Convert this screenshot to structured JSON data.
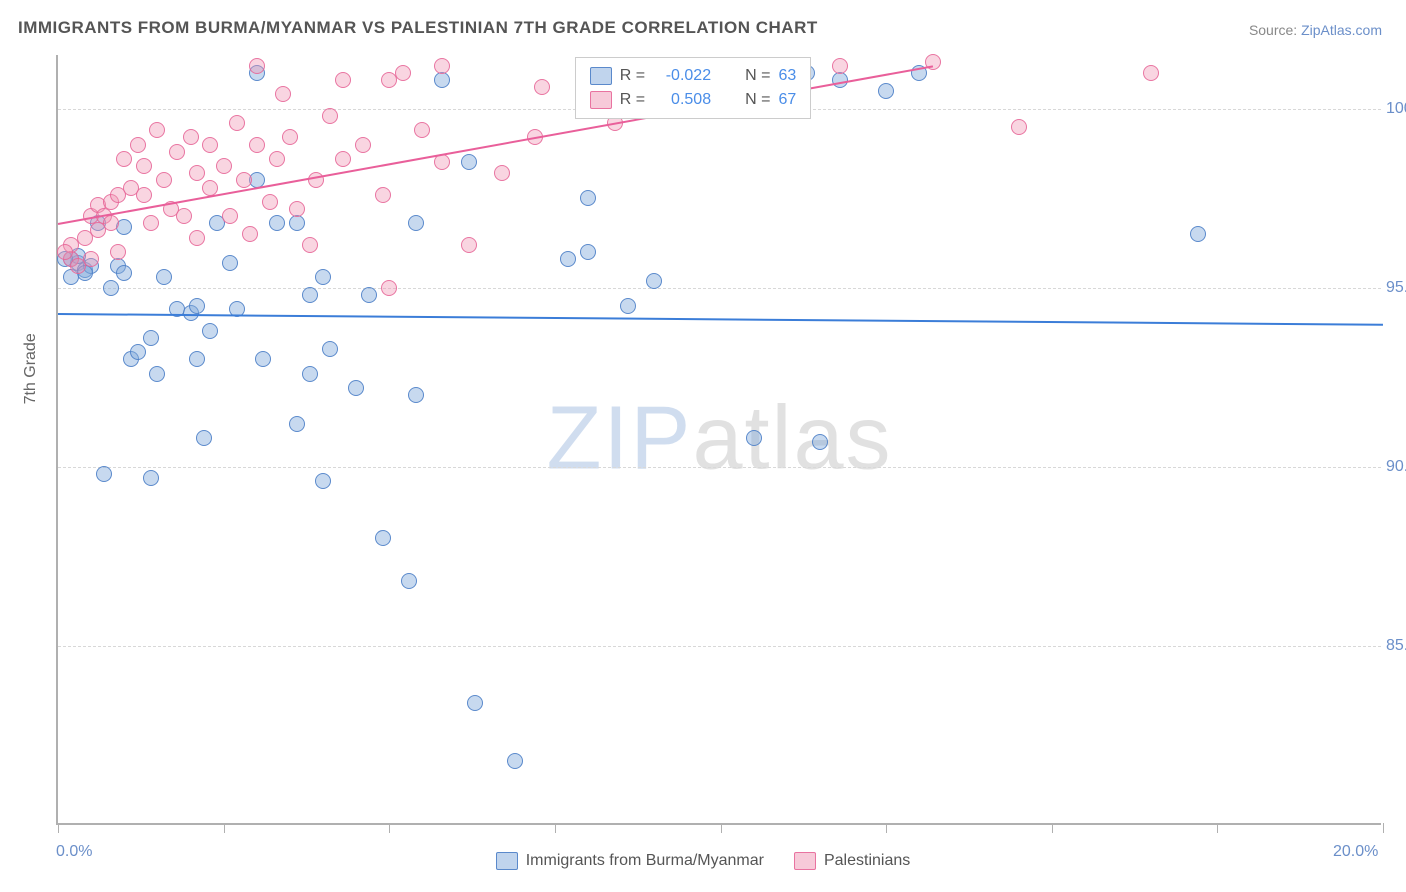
{
  "title": "IMMIGRANTS FROM BURMA/MYANMAR VS PALESTINIAN 7TH GRADE CORRELATION CHART",
  "source_label": "Source: ",
  "source_link": "ZipAtlas.com",
  "ylabel": "7th Grade",
  "watermark_left": "ZIP",
  "watermark_right": "atlas",
  "chart": {
    "type": "scatter",
    "background_color": "#ffffff",
    "grid_color": "#d8d8d8",
    "axis_color": "#b0b0b0",
    "xlim": [
      0,
      20
    ],
    "ylim": [
      80,
      101.5
    ],
    "xtick_positions": [
      0,
      2.5,
      5,
      7.5,
      10,
      12.5,
      15,
      17.5,
      20
    ],
    "ytick_positions": [
      85,
      90,
      95,
      100
    ],
    "xtick_labels_shown": {
      "0": "0.0%",
      "20": "20.0%"
    },
    "ytick_labels": {
      "85": "85.0%",
      "90": "90.0%",
      "95": "95.0%",
      "100": "100.0%"
    },
    "marker_radius": 8,
    "marker_fill_opacity": 0.45,
    "line_width": 2,
    "label_fontsize": 16,
    "title_fontsize": 17,
    "tick_label_color": "#6b8fc9",
    "series": [
      {
        "name": "Immigrants from Burma/Myanmar",
        "color_fill": "#82aadc",
        "color_border": "#5082c8",
        "trend_color": "#3b7dd8",
        "R": "-0.022",
        "N": "63",
        "trend": {
          "x1": 0,
          "y1": 94.3,
          "x2": 20,
          "y2": 94.0
        },
        "points": [
          [
            0.2,
            95.8
          ],
          [
            0.3,
            95.7
          ],
          [
            0.4,
            95.5
          ],
          [
            0.3,
            95.9
          ],
          [
            0.5,
            95.6
          ],
          [
            0.1,
            95.8
          ],
          [
            0.4,
            95.4
          ],
          [
            0.2,
            95.3
          ],
          [
            0.6,
            96.8
          ],
          [
            0.8,
            95.0
          ],
          [
            0.9,
            95.6
          ],
          [
            1.0,
            96.7
          ],
          [
            1.0,
            95.4
          ],
          [
            1.1,
            93.0
          ],
          [
            0.7,
            89.8
          ],
          [
            1.2,
            93.2
          ],
          [
            1.4,
            93.6
          ],
          [
            1.5,
            92.6
          ],
          [
            1.4,
            89.7
          ],
          [
            1.6,
            95.3
          ],
          [
            1.8,
            94.4
          ],
          [
            2.0,
            94.3
          ],
          [
            2.1,
            94.5
          ],
          [
            2.3,
            93.8
          ],
          [
            2.1,
            93.0
          ],
          [
            2.2,
            90.8
          ],
          [
            2.4,
            96.8
          ],
          [
            2.6,
            95.7
          ],
          [
            2.7,
            94.4
          ],
          [
            3.0,
            98.0
          ],
          [
            3.0,
            101.0
          ],
          [
            3.1,
            93.0
          ],
          [
            3.3,
            96.8
          ],
          [
            3.6,
            96.8
          ],
          [
            3.8,
            94.8
          ],
          [
            3.8,
            92.6
          ],
          [
            3.6,
            91.2
          ],
          [
            4.0,
            95.3
          ],
          [
            4.1,
            93.3
          ],
          [
            4.5,
            92.2
          ],
          [
            4.9,
            88.0
          ],
          [
            4.0,
            89.6
          ],
          [
            4.7,
            94.8
          ],
          [
            5.4,
            92.0
          ],
          [
            5.3,
            86.8
          ],
          [
            5.4,
            96.8
          ],
          [
            5.8,
            100.8
          ],
          [
            6.2,
            98.5
          ],
          [
            6.3,
            83.4
          ],
          [
            6.9,
            81.8
          ],
          [
            8.0,
            96.0
          ],
          [
            8.0,
            97.5
          ],
          [
            8.6,
            94.5
          ],
          [
            9.0,
            95.2
          ],
          [
            10.5,
            90.8
          ],
          [
            11.5,
            90.7
          ],
          [
            11.3,
            101.0
          ],
          [
            12.5,
            100.5
          ],
          [
            11.0,
            100.3
          ],
          [
            11.8,
            100.8
          ],
          [
            13.0,
            101.0
          ],
          [
            17.2,
            96.5
          ],
          [
            7.7,
            95.8
          ]
        ]
      },
      {
        "name": "Palestinians",
        "color_fill": "#f096b4",
        "color_border": "#e66496",
        "trend_color": "#e95f9a",
        "R": "0.508",
        "N": "67",
        "trend": {
          "x1": 0,
          "y1": 96.8,
          "x2": 13.2,
          "y2": 101.2
        },
        "points": [
          [
            0.2,
            95.8
          ],
          [
            0.3,
            95.6
          ],
          [
            0.2,
            96.2
          ],
          [
            0.1,
            96.0
          ],
          [
            0.4,
            96.4
          ],
          [
            0.5,
            97.0
          ],
          [
            0.6,
            97.3
          ],
          [
            0.6,
            96.6
          ],
          [
            0.5,
            95.8
          ],
          [
            0.7,
            97.0
          ],
          [
            0.8,
            97.4
          ],
          [
            0.8,
            96.8
          ],
          [
            0.9,
            97.6
          ],
          [
            0.9,
            96.0
          ],
          [
            1.0,
            98.6
          ],
          [
            1.1,
            97.8
          ],
          [
            1.2,
            99.0
          ],
          [
            1.3,
            97.6
          ],
          [
            1.3,
            98.4
          ],
          [
            1.4,
            96.8
          ],
          [
            1.5,
            99.4
          ],
          [
            1.6,
            98.0
          ],
          [
            1.7,
            97.2
          ],
          [
            1.8,
            98.8
          ],
          [
            1.9,
            97.0
          ],
          [
            2.0,
            99.2
          ],
          [
            2.1,
            98.2
          ],
          [
            2.1,
            96.4
          ],
          [
            2.3,
            97.8
          ],
          [
            2.3,
            99.0
          ],
          [
            2.5,
            98.4
          ],
          [
            2.6,
            97.0
          ],
          [
            2.7,
            99.6
          ],
          [
            2.8,
            98.0
          ],
          [
            2.9,
            96.5
          ],
          [
            3.0,
            101.2
          ],
          [
            3.0,
            99.0
          ],
          [
            3.2,
            97.4
          ],
          [
            3.3,
            98.6
          ],
          [
            3.4,
            100.4
          ],
          [
            3.5,
            99.2
          ],
          [
            3.6,
            97.2
          ],
          [
            3.8,
            96.2
          ],
          [
            3.9,
            98.0
          ],
          [
            4.1,
            99.8
          ],
          [
            4.3,
            98.6
          ],
          [
            4.3,
            100.8
          ],
          [
            4.6,
            99.0
          ],
          [
            4.9,
            97.6
          ],
          [
            5.0,
            95.0
          ],
          [
            5.2,
            101.0
          ],
          [
            5.5,
            99.4
          ],
          [
            5.8,
            98.5
          ],
          [
            5.8,
            101.2
          ],
          [
            6.2,
            96.2
          ],
          [
            6.7,
            98.2
          ],
          [
            7.2,
            99.2
          ],
          [
            7.3,
            100.6
          ],
          [
            8.4,
            99.6
          ],
          [
            9.5,
            100.3
          ],
          [
            10.5,
            100.5
          ],
          [
            11.0,
            101.0
          ],
          [
            11.8,
            101.2
          ],
          [
            13.2,
            101.3
          ],
          [
            14.5,
            99.5
          ],
          [
            16.5,
            101.0
          ],
          [
            5.0,
            100.8
          ]
        ]
      }
    ]
  },
  "legend_top": {
    "r_label": "R =",
    "n_label": "N ="
  },
  "legend_bottom": [
    {
      "swatch": "blue",
      "label": "Immigrants from Burma/Myanmar"
    },
    {
      "swatch": "pink",
      "label": "Palestinians"
    }
  ]
}
